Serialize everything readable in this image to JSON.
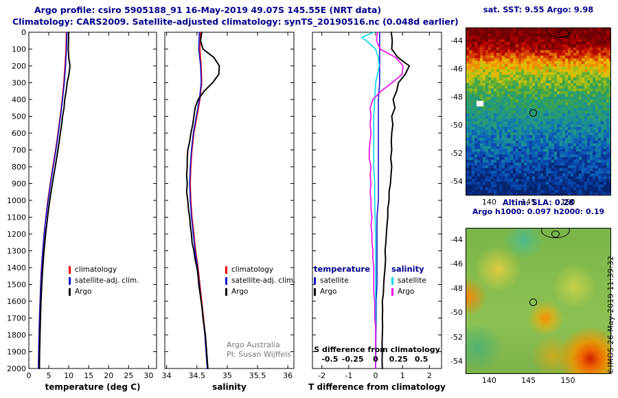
{
  "header": {
    "line1": "Argo profile: csiro 5905188_91 16-May-2019 49.07S 145.55E (NRT data)",
    "line2": "Climatology: CARS2009. Satellite-adjusted climatology: synTS_20190516.nc (0.048d earlier)"
  },
  "credit": {
    "line1": "Argo Australia",
    "line2": "PI: Susan Wijffels"
  },
  "watermark": "©IMOS 26-May-2019 11:39:32",
  "colors": {
    "accent_navy": "#00008b",
    "climatology_red": "#ee0000",
    "satellite_blue": "#1111cc",
    "argo_black": "#000000",
    "s_satellite_cyan": "#00d8e8",
    "s_argo_magenta": "#ee00ee",
    "credit_gray": "#777777"
  },
  "legends": {
    "profile": [
      {
        "label": "climatology",
        "color": "#ee0000"
      },
      {
        "label": "satellite-adj. clim.",
        "color": "#1111cc"
      },
      {
        "label": "Argo",
        "color": "#000000"
      }
    ],
    "difference": {
      "col1_header": "temperature",
      "col1": [
        {
          "label": "satellite",
          "color": "#1111cc"
        },
        {
          "label": "Argo",
          "color": "#000000"
        }
      ],
      "col2_header": "salinity",
      "col2": [
        {
          "label": "satellite",
          "color": "#00d8e8"
        },
        {
          "label": "Argo",
          "color": "#ee00ee"
        }
      ]
    }
  },
  "chart_data": [
    {
      "id": "temperature",
      "type": "line",
      "xlabel": "temperature (deg C)",
      "xlim": [
        0,
        32
      ],
      "xticks": [
        0,
        5,
        10,
        15,
        20,
        25,
        30
      ],
      "ylim": [
        0,
        2000
      ],
      "yticks": [
        0,
        100,
        200,
        300,
        400,
        500,
        600,
        700,
        800,
        900,
        1000,
        1100,
        1200,
        1300,
        1400,
        1500,
        1600,
        1700,
        1800,
        1900,
        2000
      ],
      "show_depth_labels": true,
      "series": [
        {
          "key": "climatology",
          "name": "climatology",
          "color": "#ee0000",
          "width": 1.6,
          "depth": [
            0,
            100,
            200,
            300,
            400,
            500,
            600,
            700,
            800,
            900,
            1000,
            1100,
            1200,
            1300,
            1400,
            1500,
            1600,
            1700,
            1800,
            1900,
            2000
          ],
          "values": [
            9.4,
            9.3,
            9.05,
            8.75,
            8.35,
            7.85,
            7.3,
            6.7,
            6.0,
            5.35,
            4.75,
            4.25,
            3.8,
            3.45,
            3.15,
            2.95,
            2.8,
            2.65,
            2.55,
            2.45,
            2.4
          ]
        },
        {
          "key": "satellite_adj",
          "name": "satellite-adj. clim.",
          "color": "#1111cc",
          "width": 1.6,
          "depth": [
            0,
            100,
            200,
            300,
            400,
            500,
            600,
            700,
            800,
            900,
            1000,
            1100,
            1200,
            1300,
            1400,
            1500,
            1600,
            1700,
            1800,
            1900,
            2000
          ],
          "values": [
            9.55,
            9.45,
            9.2,
            8.9,
            8.45,
            7.95,
            7.4,
            6.8,
            6.1,
            5.45,
            4.85,
            4.3,
            3.85,
            3.5,
            3.2,
            3.0,
            2.82,
            2.67,
            2.56,
            2.46,
            2.4
          ]
        },
        {
          "key": "argo",
          "name": "Argo",
          "color": "#000000",
          "width": 2,
          "depth": [
            0,
            50,
            100,
            150,
            200,
            250,
            300,
            350,
            400,
            450,
            500,
            550,
            600,
            650,
            700,
            750,
            800,
            850,
            900,
            950,
            1000,
            1050,
            1100,
            1150,
            1200,
            1250,
            1300,
            1350,
            1400,
            1450,
            1500,
            1550,
            1600,
            1650,
            1700,
            1750,
            1800,
            1850,
            1900,
            1950,
            2000
          ],
          "values": [
            9.98,
            9.95,
            9.9,
            10.0,
            10.3,
            10.05,
            9.6,
            9.35,
            9.0,
            8.8,
            8.45,
            8.2,
            7.9,
            7.6,
            7.3,
            6.95,
            6.6,
            6.25,
            5.9,
            5.55,
            5.25,
            4.95,
            4.7,
            4.45,
            4.2,
            4.0,
            3.8,
            3.65,
            3.5,
            3.35,
            3.25,
            3.15,
            3.05,
            2.97,
            2.9,
            2.85,
            2.8,
            2.75,
            2.7,
            2.67,
            2.65
          ]
        }
      ]
    },
    {
      "id": "salinity",
      "type": "line",
      "xlabel": "salinity",
      "xlim": [
        33.97,
        36.1
      ],
      "xticks": [
        34,
        34.5,
        35,
        35.5,
        36
      ],
      "ylim": [
        0,
        2000
      ],
      "yticks": [
        0,
        100,
        200,
        300,
        400,
        500,
        600,
        700,
        800,
        900,
        1000,
        1100,
        1200,
        1300,
        1400,
        1500,
        1600,
        1700,
        1800,
        1900,
        2000
      ],
      "show_depth_labels": false,
      "series": [
        {
          "key": "climatology",
          "name": "climatology",
          "color": "#ee0000",
          "width": 1.6,
          "depth": [
            0,
            100,
            200,
            300,
            400,
            500,
            600,
            700,
            800,
            900,
            1000,
            1100,
            1200,
            1300,
            1400,
            1500,
            1600,
            1700,
            1800,
            1900,
            2000
          ],
          "values": [
            34.56,
            34.55,
            34.57,
            34.58,
            34.55,
            34.5,
            34.45,
            34.42,
            34.4,
            34.39,
            34.4,
            34.42,
            34.45,
            34.48,
            34.52,
            34.55,
            34.58,
            34.61,
            34.64,
            34.66,
            34.68
          ]
        },
        {
          "key": "satellite_adj",
          "name": "satellite-adj. clim.",
          "color": "#1111cc",
          "width": 1.6,
          "depth": [
            0,
            100,
            200,
            300,
            400,
            500,
            600,
            700,
            800,
            900,
            1000,
            1100,
            1200,
            1300,
            1400,
            1500,
            1600,
            1700,
            1800,
            1900,
            2000
          ],
          "values": [
            34.54,
            34.53,
            34.56,
            34.57,
            34.54,
            34.49,
            34.44,
            34.41,
            34.39,
            34.38,
            34.39,
            34.41,
            34.44,
            34.47,
            34.51,
            34.54,
            34.57,
            34.6,
            34.63,
            34.65,
            34.67
          ]
        },
        {
          "key": "argo",
          "name": "Argo",
          "color": "#000000",
          "width": 2,
          "depth": [
            0,
            50,
            100,
            150,
            200,
            250,
            300,
            350,
            400,
            450,
            500,
            550,
            600,
            650,
            700,
            750,
            800,
            850,
            900,
            950,
            1000,
            1050,
            1100,
            1150,
            1200,
            1250,
            1300,
            1350,
            1400,
            1450,
            1500,
            1550,
            1600,
            1650,
            1700,
            1750,
            1800,
            1850,
            1900,
            1950,
            2000
          ],
          "values": [
            34.58,
            34.56,
            34.6,
            34.78,
            34.87,
            34.86,
            34.76,
            34.62,
            34.52,
            34.47,
            34.45,
            34.43,
            34.4,
            34.38,
            34.35,
            34.34,
            34.34,
            34.33,
            34.34,
            34.33,
            34.35,
            34.36,
            34.38,
            34.39,
            34.41,
            34.42,
            34.45,
            34.47,
            34.5,
            34.52,
            34.53,
            34.55,
            34.57,
            34.59,
            34.6,
            34.62,
            34.64,
            34.65,
            34.66,
            34.67,
            34.68
          ]
        }
      ]
    },
    {
      "id": "difference",
      "type": "line",
      "xlabel": "T difference from climatology",
      "xlim": [
        -2.35,
        2.45
      ],
      "xticks": [
        -2,
        -1,
        0,
        1,
        2
      ],
      "x2label": "S difference from climatology",
      "x2lim": [
        -0.69,
        0.72
      ],
      "x2ticks": [
        -0.5,
        -0.25,
        0,
        0.25,
        0.5
      ],
      "ylim": [
        0,
        2000
      ],
      "yticks": [
        0,
        100,
        200,
        300,
        400,
        500,
        600,
        700,
        800,
        900,
        1000,
        1100,
        1200,
        1300,
        1400,
        1500,
        1600,
        1700,
        1800,
        1900,
        2000
      ],
      "show_depth_labels": false,
      "series": [
        {
          "key": "t_satellite",
          "name": "T satellite - climatology",
          "color": "#1111cc",
          "axis": "t",
          "width": 1.6,
          "depth": [
            0,
            100,
            200,
            300,
            400,
            500,
            600,
            700,
            800,
            900,
            1000,
            1100,
            1200,
            1300,
            1400,
            1500,
            1600,
            1700,
            1800,
            1900,
            2000
          ],
          "values": [
            0.15,
            0.15,
            0.15,
            0.15,
            0.1,
            0.1,
            0.1,
            0.1,
            0.1,
            0.1,
            0.1,
            0.05,
            0.05,
            0.05,
            0.05,
            0.05,
            0.02,
            0.02,
            0.01,
            0.01,
            0.0
          ]
        },
        {
          "key": "s_satellite",
          "name": "S satellite - climatology",
          "color": "#00d8e8",
          "axis": "s",
          "width": 1.6,
          "depth": [
            0,
            30,
            60,
            100,
            150,
            200,
            250,
            300,
            400,
            500,
            600,
            700,
            800,
            900,
            1000,
            1200,
            1400,
            1600,
            1800,
            2000
          ],
          "values": [
            -0.02,
            -0.15,
            -0.08,
            0.0,
            0.03,
            0.04,
            0.02,
            0.0,
            -0.01,
            -0.02,
            -0.02,
            -0.02,
            -0.02,
            -0.01,
            -0.01,
            0.0,
            0.0,
            0.0,
            0.0,
            0.0
          ]
        },
        {
          "key": "s_argo",
          "name": "S Argo - climatology",
          "color": "#ee00ee",
          "axis": "s",
          "width": 1.6,
          "depth": [
            0,
            50,
            100,
            150,
            200,
            250,
            300,
            350,
            400,
            450,
            500,
            550,
            600,
            650,
            700,
            750,
            800,
            850,
            900,
            950,
            1000,
            1050,
            1100,
            1150,
            1200,
            1250,
            1300,
            1350,
            1400,
            1450,
            1500,
            1550,
            1600,
            1650,
            1700,
            1750,
            1800,
            1850,
            1900,
            1950,
            2000
          ],
          "values": [
            0.02,
            0.01,
            0.05,
            0.22,
            0.3,
            0.29,
            0.18,
            0.06,
            -0.03,
            -0.06,
            -0.05,
            -0.06,
            -0.05,
            -0.06,
            -0.07,
            -0.07,
            -0.05,
            -0.06,
            -0.05,
            -0.06,
            -0.05,
            -0.05,
            -0.04,
            -0.05,
            -0.04,
            -0.04,
            -0.03,
            -0.03,
            -0.02,
            -0.02,
            -0.02,
            -0.02,
            -0.01,
            -0.01,
            -0.01,
            0.0,
            0.0,
            0.0,
            0.0,
            0.0,
            0.0
          ]
        },
        {
          "key": "t_argo",
          "name": "T Argo - climatology",
          "color": "#000000",
          "axis": "t",
          "width": 2,
          "depth": [
            0,
            50,
            100,
            150,
            200,
            250,
            300,
            350,
            400,
            450,
            500,
            550,
            600,
            650,
            700,
            750,
            800,
            850,
            900,
            950,
            1000,
            1050,
            1100,
            1150,
            1200,
            1250,
            1300,
            1350,
            1400,
            1450,
            1500,
            1550,
            1600,
            1650,
            1700,
            1750,
            1800,
            1850,
            1900,
            1950,
            2000
          ],
          "values": [
            0.58,
            0.62,
            0.6,
            0.83,
            1.25,
            1.1,
            0.85,
            0.78,
            0.65,
            0.72,
            0.6,
            0.64,
            0.6,
            0.58,
            0.6,
            0.56,
            0.6,
            0.57,
            0.55,
            0.5,
            0.5,
            0.45,
            0.45,
            0.42,
            0.4,
            0.38,
            0.35,
            0.37,
            0.35,
            0.32,
            0.3,
            0.29,
            0.25,
            0.26,
            0.25,
            0.26,
            0.25,
            0.24,
            0.25,
            0.24,
            0.25
          ]
        }
      ]
    }
  ],
  "maps": [
    {
      "id": "sst",
      "title": "sat. SST: 9.55 Argo: 9.98",
      "lon_range": [
        137,
        155.5
      ],
      "lat_range": [
        -43,
        -55
      ],
      "xticks": [
        140,
        145,
        150
      ],
      "yticks": [
        -44,
        -46,
        -48,
        -50,
        -52,
        -54
      ],
      "float_lon": 145.55,
      "float_lat": -49.07,
      "palette": [
        "#6e0005",
        "#8a0000",
        "#a40000",
        "#c01000",
        "#d43c00",
        "#e46a00",
        "#ef9200",
        "#eab500",
        "#ccc20e",
        "#a0bc1e",
        "#6ab02e",
        "#3ea44a",
        "#2c9e6a",
        "#249880",
        "#1c8e96",
        "#137aab",
        "#0d5fb6",
        "#0a47aa",
        "#083391",
        "#062571"
      ]
    },
    {
      "id": "sla",
      "title": "Altim. SLA: 0.28",
      "subtitle": "Argo h1000: 0.097 h2000: 0.19",
      "lon_range": [
        137,
        155.5
      ],
      "lat_range": [
        -43,
        -55
      ],
      "xticks": [
        140,
        145,
        150
      ],
      "yticks": [
        -44,
        -46,
        -48,
        -50,
        -52,
        -54
      ],
      "float_lon": 145.55,
      "float_lat": -49.07
    }
  ]
}
